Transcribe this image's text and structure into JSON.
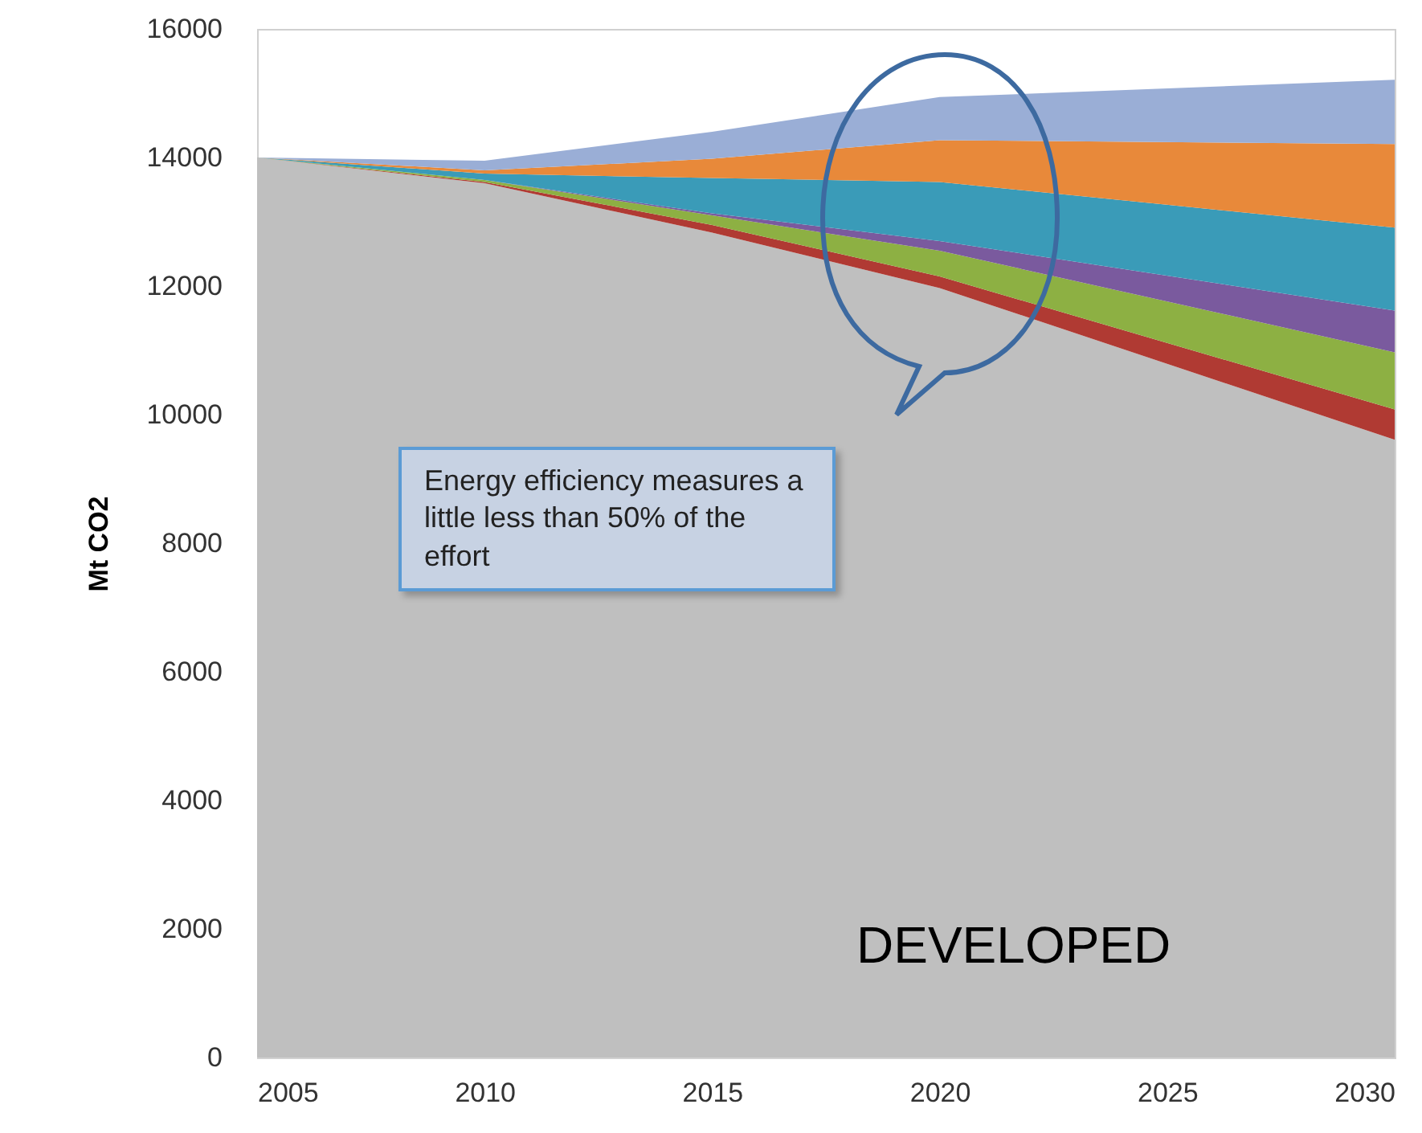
{
  "chart_data": {
    "type": "area",
    "stacked": true,
    "ylabel": "Mt CO2",
    "x": [
      2005,
      2010,
      2015,
      2020,
      2030
    ],
    "series": [
      {
        "color": "#bfbfbf",
        "values": [
          14000,
          13600,
          12830,
          11970,
          9610
        ]
      },
      {
        "color": "#b03a33",
        "values": [
          0,
          20,
          120,
          180,
          470
        ]
      },
      {
        "color": "#8db043",
        "values": [
          0,
          30,
          150,
          400,
          890
        ]
      },
      {
        "color": "#7a5a9e",
        "values": [
          0,
          0,
          30,
          150,
          650
        ]
      },
      {
        "color": "#3a9bb8",
        "values": [
          0,
          100,
          550,
          920,
          1290
        ]
      },
      {
        "color": "#e8893a",
        "values": [
          0,
          50,
          300,
          650,
          1300
        ]
      },
      {
        "color": "#9aaed6",
        "values": [
          0,
          150,
          420,
          670,
          1000
        ]
      }
    ],
    "xlim": [
      2005,
      2030
    ],
    "xticks": [
      2005,
      2010,
      2015,
      2020,
      2025,
      2030
    ],
    "ylim": [
      0,
      16000
    ],
    "yticks": [
      0,
      2000,
      4000,
      6000,
      8000,
      10000,
      12000,
      14000,
      16000
    ],
    "grid": false,
    "annotations": [
      "Energy efficiency measures a little less than 50% of the effort",
      "DEVELOPED"
    ]
  }
}
